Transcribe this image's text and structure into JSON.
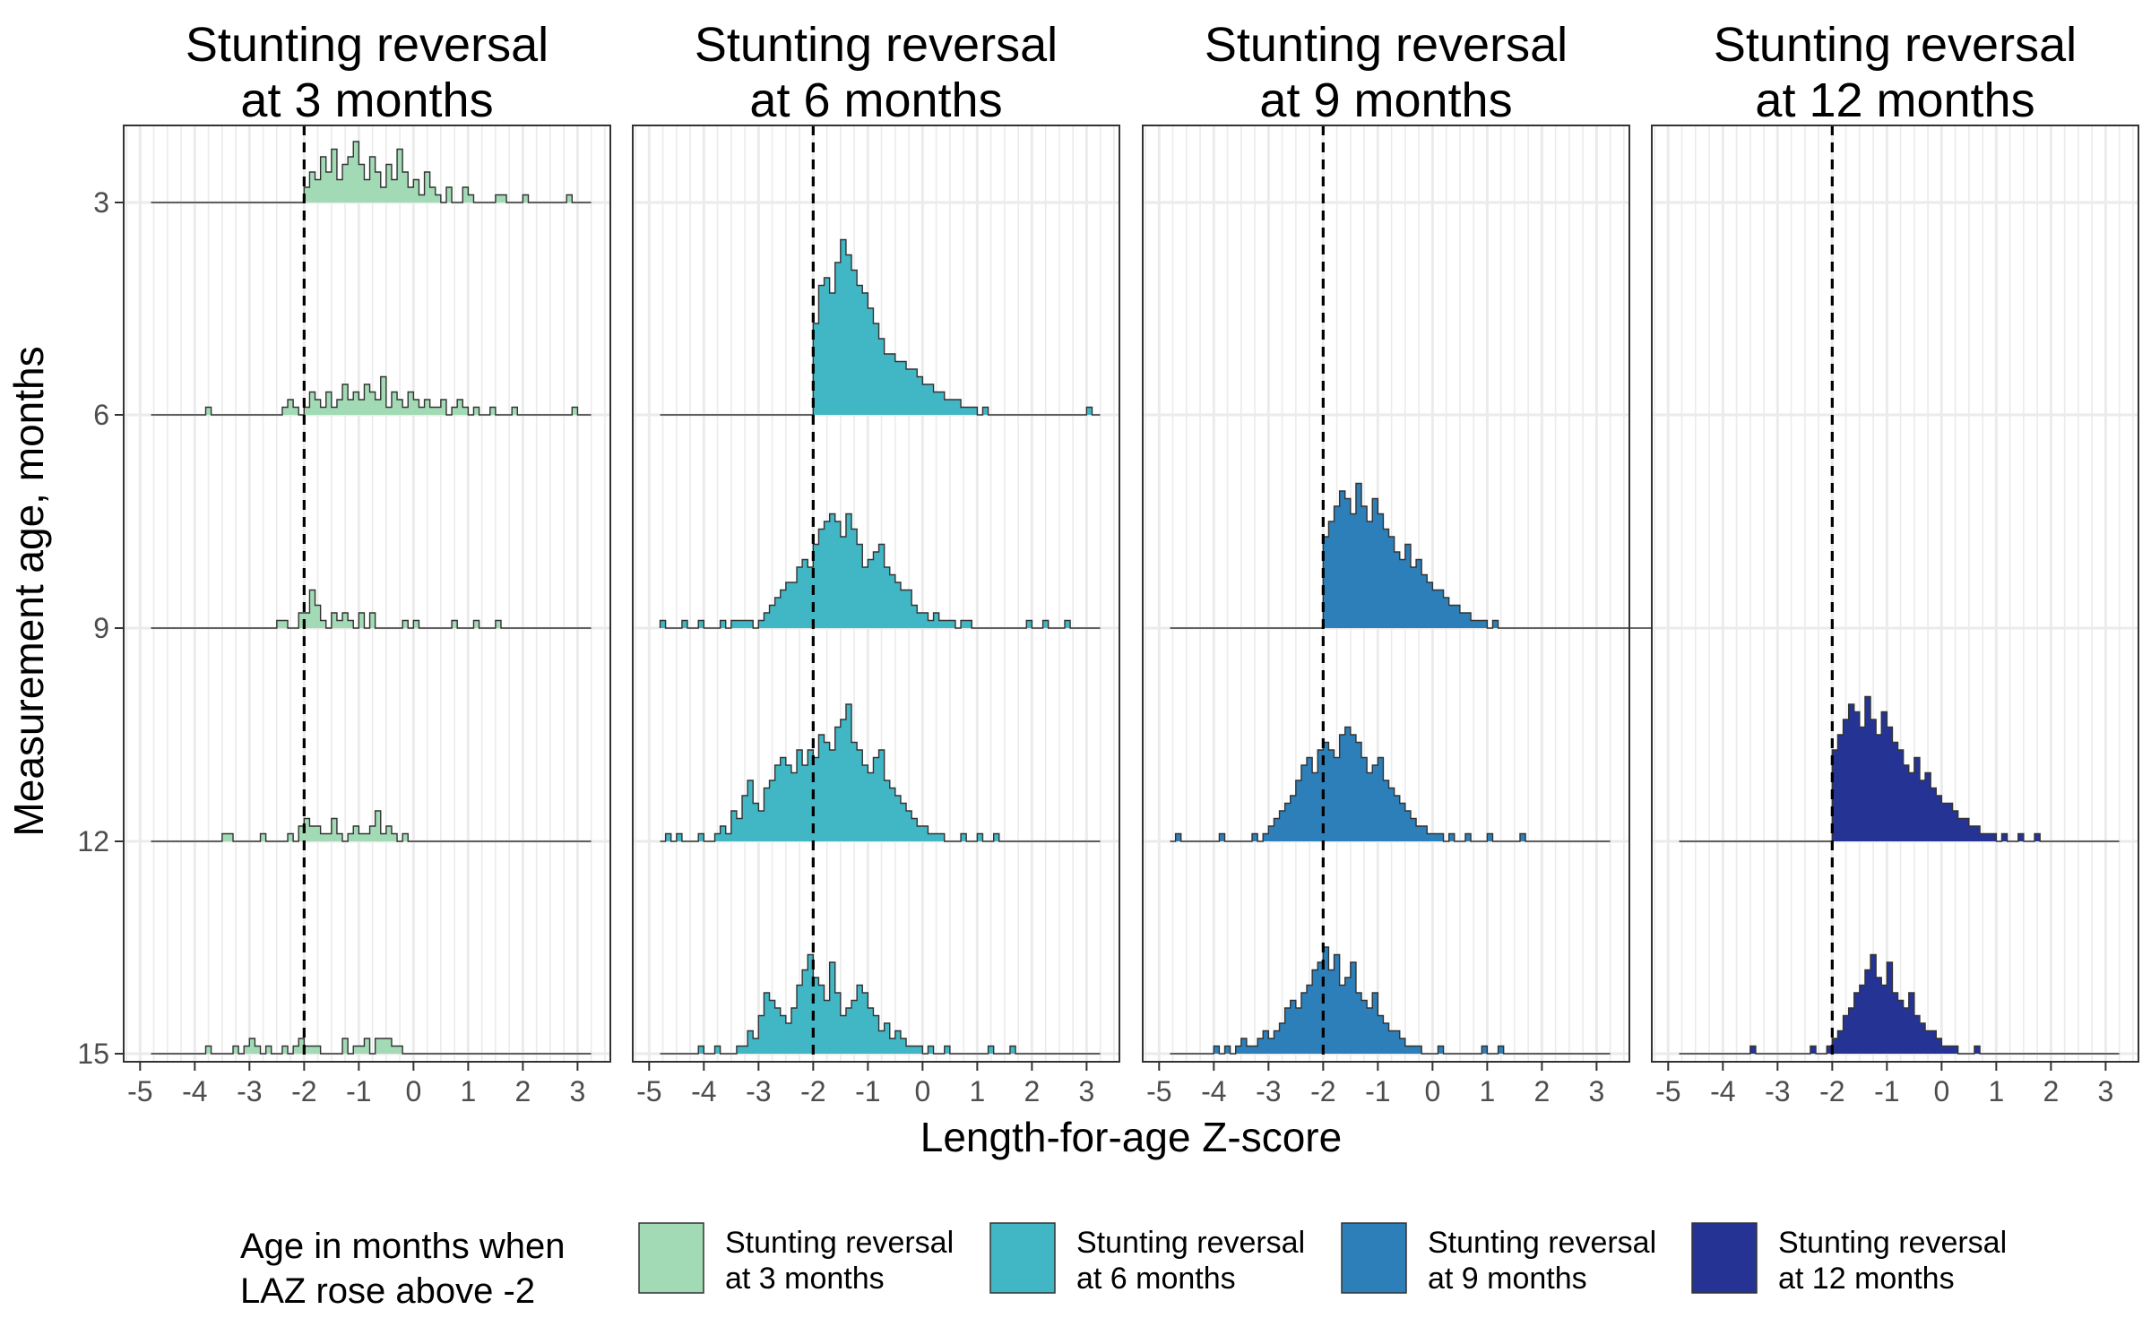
{
  "chart_data": {
    "type": "histogram-ridgeline",
    "xlabel": "Length-for-age Z-score",
    "ylabel": "Measurement age, months",
    "xlim": [
      -5.3,
      3.6
    ],
    "x_ticks": [
      -5,
      -4,
      -3,
      -2,
      -1,
      0,
      1,
      2,
      3
    ],
    "x_tick_labels": [
      "-5",
      "-4",
      "-3",
      "-2",
      "-1",
      "0",
      "1",
      "2",
      "3"
    ],
    "y_ticks": [
      3,
      6,
      9,
      12,
      15
    ],
    "y_tick_labels": [
      "3",
      "6",
      "9",
      "12",
      "15"
    ],
    "reference_line_x": -2,
    "grid": true,
    "bin_width": 0.1,
    "legend": {
      "title_lines": [
        "Age in months when",
        "LAZ rose above -2"
      ],
      "placement": "bottom"
    },
    "panels": [
      {
        "strip_lines": [
          "Stunting reversal",
          "at 3 months"
        ],
        "color": "#a1dab4",
        "legend_lines": [
          "Stunting reversal",
          "at 3 months"
        ],
        "ridges": [
          {
            "age": 3,
            "start": -2.0,
            "counts": [
              2,
              4,
              3,
              6,
              4,
              7,
              3,
              5,
              6,
              8,
              5,
              3,
              6,
              4,
              2,
              5,
              3,
              7,
              4,
              2,
              3,
              1,
              4,
              2,
              1,
              0,
              2,
              0,
              0,
              2,
              1,
              0,
              0,
              0,
              0,
              1,
              1,
              0,
              0,
              0,
              1,
              0,
              0,
              0,
              0,
              0,
              0,
              0,
              1
            ]
          },
          {
            "age": 6,
            "start": -3.8,
            "counts": [
              1,
              0,
              0,
              0,
              0,
              0,
              0,
              0,
              0,
              0,
              0,
              0,
              0,
              0,
              1,
              2,
              1,
              0,
              1,
              3,
              2,
              1,
              3,
              1,
              2,
              4,
              2,
              3,
              2,
              4,
              3,
              2,
              5,
              1,
              3,
              2,
              1,
              3,
              2,
              1,
              2,
              1,
              1,
              2,
              0,
              1,
              2,
              1,
              0,
              1,
              0,
              0,
              1,
              0,
              0,
              0,
              1,
              0,
              0,
              0,
              0,
              0,
              0,
              0,
              0,
              0,
              0,
              1
            ]
          },
          {
            "age": 9,
            "start": -2.5,
            "counts": [
              1,
              1,
              0,
              0,
              2,
              2,
              5,
              3,
              1,
              0,
              2,
              1,
              2,
              1,
              0,
              2,
              0,
              2,
              0,
              0,
              0,
              0,
              0,
              1,
              0,
              1,
              0,
              0,
              0,
              0,
              0,
              0,
              1,
              0,
              0,
              0,
              1,
              0,
              0,
              0,
              1
            ]
          },
          {
            "age": 12,
            "start": -3.5,
            "counts": [
              1,
              1,
              0,
              0,
              0,
              0,
              0,
              1,
              0,
              0,
              0,
              0,
              1,
              0,
              2,
              3,
              2,
              2,
              1,
              1,
              3,
              1,
              0,
              1,
              2,
              1,
              1,
              2,
              4,
              1,
              2,
              1,
              0,
              1
            ]
          },
          {
            "age": 15,
            "start": -3.8,
            "counts": [
              1,
              0,
              0,
              0,
              0,
              1,
              0,
              1,
              2,
              1,
              0,
              1,
              0,
              0,
              1,
              0,
              1,
              2,
              1,
              1,
              1,
              0,
              0,
              0,
              0,
              2,
              0,
              1,
              1,
              2,
              0,
              2,
              2,
              2,
              1,
              1,
              0,
              0,
              0
            ]
          }
        ]
      },
      {
        "strip_lines": [
          "Stunting reversal",
          "at 6 months"
        ],
        "color": "#41b6c4",
        "legend_lines": [
          "Stunting reversal",
          "at 6 months"
        ],
        "ridges": [
          {
            "age": 6,
            "start": -2.0,
            "counts": [
              12,
              17,
              18,
              16,
              20,
              23,
              21,
              19,
              17,
              16,
              14,
              12,
              10,
              8,
              8,
              7,
              7,
              6,
              6,
              5,
              4,
              4,
              3,
              3,
              2,
              2,
              2,
              1,
              1,
              1,
              0,
              1,
              0,
              0,
              0,
              0,
              0,
              0,
              0,
              0,
              0,
              0,
              0,
              0,
              0,
              0,
              0,
              0,
              0,
              0,
              1
            ]
          },
          {
            "age": 9,
            "start": -4.8,
            "counts": [
              1,
              0,
              0,
              0,
              1,
              0,
              0,
              1,
              0,
              0,
              0,
              1,
              0,
              1,
              1,
              1,
              1,
              0,
              1,
              2,
              3,
              4,
              5,
              6,
              6,
              8,
              9,
              8,
              11,
              13,
              14,
              15,
              14,
              12,
              15,
              13,
              11,
              8,
              9,
              10,
              11,
              8,
              7,
              6,
              5,
              5,
              3,
              2,
              2,
              1,
              2,
              1,
              1,
              1,
              0,
              1,
              1,
              0,
              0,
              0,
              0,
              0,
              0,
              0,
              0,
              0,
              0,
              1,
              0,
              0,
              1,
              0,
              0,
              0,
              1
            ]
          },
          {
            "age": 12,
            "start": -4.7,
            "counts": [
              1,
              0,
              1,
              0,
              0,
              0,
              1,
              0,
              0,
              1,
              2,
              1,
              4,
              3,
              6,
              8,
              5,
              4,
              7,
              8,
              10,
              11,
              10,
              9,
              12,
              10,
              12,
              11,
              14,
              13,
              12,
              15,
              16,
              18,
              13,
              12,
              10,
              9,
              11,
              12,
              8,
              7,
              6,
              5,
              4,
              3,
              2,
              2,
              1,
              1,
              1,
              0,
              0,
              0,
              1,
              0,
              0,
              1,
              0,
              0,
              1
            ]
          },
          {
            "age": 15,
            "start": -4.1,
            "counts": [
              1,
              0,
              0,
              1,
              0,
              0,
              0,
              1,
              1,
              3,
              2,
              5,
              8,
              7,
              6,
              5,
              4,
              6,
              9,
              11,
              13,
              10,
              9,
              7,
              12,
              8,
              5,
              6,
              7,
              9,
              8,
              6,
              5,
              3,
              4,
              2,
              3,
              2,
              1,
              1,
              1,
              0,
              1,
              0,
              0,
              1,
              0,
              0,
              0,
              0,
              0,
              0,
              0,
              1,
              0,
              0,
              0,
              1
            ]
          }
        ]
      },
      {
        "strip_lines": [
          "Stunting reversal",
          "at 9 months"
        ],
        "color": "#2c7fb8",
        "legend_lines": [
          "Stunting reversal",
          "at 9 months"
        ],
        "ridges": [
          {
            "age": 9,
            "start": -2.0,
            "counts": [
              12,
              14,
              16,
              18,
              17,
              15,
              19,
              16,
              14,
              17,
              15,
              13,
              12,
              10,
              9,
              11,
              8,
              9,
              7,
              6,
              5,
              5,
              4,
              3,
              3,
              2,
              2,
              1,
              1,
              1,
              0,
              1,
              0,
              0,
              0,
              0,
              0,
              0,
              0,
              0,
              0,
              0,
              0,
              0,
              0,
              0,
              0,
              0,
              0,
              0,
              0,
              0,
              0,
              0,
              0,
              0,
              0,
              0,
              0,
              0,
              0,
              0,
              0,
              0,
              0,
              0,
              0,
              0,
              0,
              0,
              0,
              0,
              0,
              0,
              0,
              0,
              0,
              0,
              0,
              0,
              0,
              0,
              0,
              0,
              0,
              0,
              0,
              0,
              0,
              0,
              0,
              0,
              0,
              0,
              0,
              0
            ]
          },
          {
            "age": 12,
            "start": -4.7,
            "counts": [
              1,
              0,
              0,
              0,
              0,
              0,
              0,
              0,
              1,
              0,
              0,
              0,
              0,
              0,
              1,
              0,
              1,
              2,
              3,
              4,
              5,
              6,
              8,
              10,
              11,
              9,
              12,
              13,
              12,
              11,
              14,
              15,
              14,
              13,
              11,
              9,
              10,
              11,
              8,
              7,
              6,
              5,
              4,
              3,
              2,
              2,
              1,
              1,
              1,
              0,
              1,
              0,
              0,
              1,
              0,
              0,
              0,
              1,
              0,
              0,
              0,
              0,
              0,
              1
            ]
          },
          {
            "age": 15,
            "start": -4.0,
            "counts": [
              1,
              0,
              1,
              0,
              1,
              2,
              1,
              1,
              2,
              3,
              2,
              3,
              4,
              6,
              7,
              6,
              8,
              9,
              11,
              12,
              14,
              11,
              13,
              9,
              10,
              12,
              8,
              7,
              6,
              8,
              5,
              4,
              3,
              3,
              2,
              1,
              1,
              1,
              0,
              0,
              0,
              1,
              0,
              0,
              0,
              0,
              0,
              0,
              0,
              1,
              0,
              0,
              1,
              0,
              0,
              0
            ]
          }
        ]
      },
      {
        "strip_lines": [
          "Stunting reversal",
          "at 12 months"
        ],
        "color": "#253494",
        "legend_lines": [
          "Stunting reversal",
          "at 12 months"
        ],
        "ridges": [
          {
            "age": 12,
            "start": -2.0,
            "counts": [
              12,
              14,
              16,
              18,
              17,
              15,
              19,
              16,
              14,
              17,
              15,
              13,
              12,
              10,
              9,
              11,
              8,
              9,
              7,
              6,
              5,
              5,
              4,
              3,
              3,
              2,
              2,
              1,
              1,
              1,
              0,
              1,
              0,
              0,
              1,
              0,
              0,
              1,
              0,
              0,
              0,
              0,
              0,
              0,
              0,
              0,
              0,
              0,
              0,
              0
            ]
          },
          {
            "age": 15,
            "start": -3.5,
            "counts": [
              1,
              0,
              0,
              0,
              0,
              0,
              0,
              0,
              0,
              0,
              0,
              1,
              0,
              0,
              1,
              2,
              3,
              5,
              6,
              8,
              9,
              11,
              13,
              10,
              9,
              12,
              8,
              7,
              6,
              8,
              5,
              4,
              3,
              3,
              2,
              1,
              1,
              1,
              0,
              0,
              0,
              1,
              0,
              0,
              0,
              0,
              0,
              0,
              0,
              0,
              0,
              0,
              0,
              0,
              0,
              0
            ]
          }
        ]
      }
    ]
  }
}
